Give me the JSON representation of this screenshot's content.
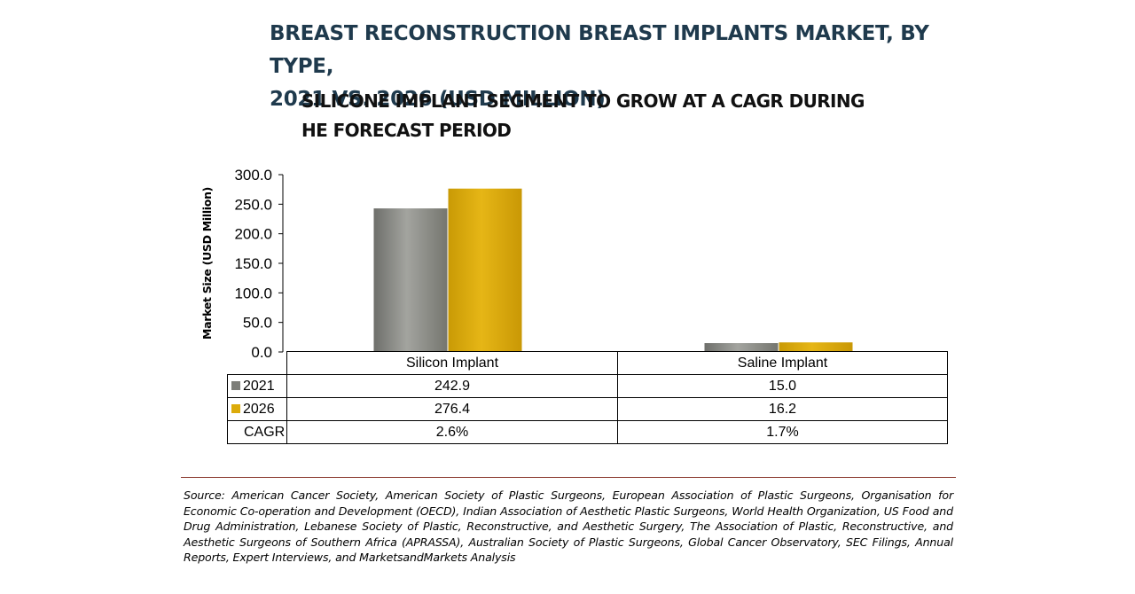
{
  "title_line1": "BREAST RECONSTRUCTION BREAST IMPLANTS MARKET, BY TYPE,",
  "title_line2": "2021 VS. 2026 (USD MILLION)",
  "subtitle_line1": "SILICONE IMPLANT SEGMENT TO GROW AT A CAGR DURING",
  "subtitle_line2": "HE FORECAST PERIOD",
  "colors": {
    "series_2021": "#8a8b87",
    "series_2026": "#dcab0a",
    "title": "#1f3a4d"
  },
  "chart_data": {
    "type": "bar",
    "title": "BREAST RECONSTRUCTION BREAST IMPLANTS MARKET, BY TYPE, 2021 VS. 2026 (USD MILLION)",
    "ylabel": "Market Size (USD Million)",
    "xlabel": "",
    "ylim": [
      0,
      300
    ],
    "yticks": [
      "0.0",
      "50.0",
      "100.0",
      "150.0",
      "200.0",
      "250.0",
      "300.0"
    ],
    "categories": [
      "Silicon  Implant",
      "Saline Implant"
    ],
    "series": [
      {
        "name": "2021",
        "values": [
          242.9,
          15.0
        ],
        "labels": [
          "242.9",
          "15.0"
        ]
      },
      {
        "name": "2026",
        "values": [
          276.4,
          16.2
        ],
        "labels": [
          "276.4",
          "16.2"
        ]
      }
    ],
    "cagr_label": "CAGR",
    "cagr": [
      "2.6%",
      "1.7%"
    ]
  },
  "source": "Source: American Cancer Society, American Society of Plastic Surgeons, European Association of Plastic Surgeons, Organisation for Economic Co-operation and Development (OECD), Indian Association of Aesthetic Plastic Surgeons, World Health Organization, US Food and Drug Administration, Lebanese Society of Plastic, Reconstructive, and Aesthetic Surgery, The Association of Plastic, Reconstructive, and Aesthetic Surgeons of Southern Africa (APRASSA), Australian Society of Plastic Surgeons, Global Cancer Observatory, SEC Filings, Annual Reports, Expert Interviews, and MarketsandMarkets Analysis"
}
